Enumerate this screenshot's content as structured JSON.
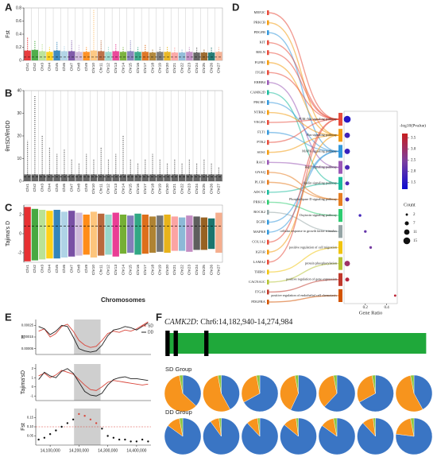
{
  "chart_data": [
    {
      "type": "manhattan",
      "label": "A",
      "ylabel": "Fst",
      "categories": [
        "Chr1",
        "Chr2",
        "Chr3",
        "Chr4",
        "Chr5",
        "Chr6",
        "Chr7",
        "Chr8",
        "Chr9",
        "Chr10",
        "Chr11",
        "Chr12",
        "Chr13",
        "Chr14",
        "Chr15",
        "Chr16",
        "Chr17",
        "Chr18",
        "Chr19",
        "Chr20",
        "Chr21",
        "Chr22",
        "Chr23",
        "Chr24",
        "Chr25",
        "Chr26",
        "Chr27"
      ],
      "values": [
        0.35,
        0.3,
        0.25,
        0.2,
        0.28,
        0.22,
        0.3,
        0.25,
        0.2,
        0.78,
        0.3,
        0.22,
        0.25,
        0.2,
        0.3,
        0.2,
        0.25,
        0.18,
        0.2,
        0.22,
        0.2,
        0.18,
        0.2,
        0.2,
        0.18,
        0.2,
        0.2
      ],
      "bulk": [
        0.15,
        0.16,
        0.14,
        0.13,
        0.15,
        0.14,
        0.14,
        0.13,
        0.13,
        0.15,
        0.14,
        0.13,
        0.14,
        0.13,
        0.14,
        0.13,
        0.13,
        0.12,
        0.13,
        0.13,
        0.12,
        0.12,
        0.13,
        0.12,
        0.12,
        0.12,
        0.13
      ],
      "colors": [
        "#e41a1c",
        "#33a02c",
        "#b2df8a",
        "#ffcc00",
        "#1f78b4",
        "#a6cee3",
        "#6a3d9a",
        "#cab2d6",
        "#ff7f00",
        "#fdbf6f",
        "#b15928",
        "#8dd3c7",
        "#e7298a",
        "#66a61e",
        "#7570b3",
        "#1b9e77",
        "#d95f02",
        "#a6761d",
        "#666666",
        "#e6ab02",
        "#fb9a99",
        "#80b1d3",
        "#bc80bd",
        "#4d4d4d",
        "#8c510a",
        "#01665e",
        "#f4a582"
      ],
      "ylim": [
        0,
        0.8
      ],
      "yticks": [
        0,
        0.2,
        0.4,
        0.6,
        0.8
      ],
      "threshold": 0.05,
      "separators": true
    },
    {
      "type": "manhattan",
      "label": "B",
      "ylabel": "θπSD/θπDD",
      "categories": [
        "Chr1",
        "Chr2",
        "Chr3",
        "Chr4",
        "Chr5",
        "Chr6",
        "Chr7",
        "Chr8",
        "Chr9",
        "Chr10",
        "Chr11",
        "Chr12",
        "Chr13",
        "Chr14",
        "Chr15",
        "Chr16",
        "Chr17",
        "Chr18",
        "Chr19",
        "Chr20",
        "Chr21",
        "Chr22",
        "Chr23",
        "Chr24",
        "Chr25",
        "Chr26",
        "Chr27"
      ],
      "values": [
        18,
        38,
        20,
        15,
        12,
        14,
        10,
        8,
        12,
        10,
        15,
        10,
        12,
        20,
        10,
        8,
        10,
        12,
        10,
        8,
        10,
        8,
        10,
        8,
        10,
        8,
        6
      ],
      "bulk": [
        3,
        3,
        3,
        3,
        3,
        3,
        3,
        3,
        3,
        3,
        3,
        3,
        3,
        3,
        3,
        3,
        3,
        3,
        3,
        3,
        3,
        3,
        3,
        3,
        3,
        3,
        3
      ],
      "color": "#4a4a4a",
      "ylim": [
        0,
        40
      ],
      "yticks": [
        0,
        10,
        20,
        30,
        40
      ],
      "threshold": 2,
      "separators": true
    },
    {
      "type": "manhattan",
      "label": "C",
      "ylabel": "Tajima's D",
      "xlabel": "Chromosomes",
      "categories": [
        "Chr1",
        "Chr2",
        "Chr3",
        "Chr4",
        "Chr5",
        "Chr6",
        "Chr7",
        "Chr8",
        "Chr9",
        "Chr10",
        "Chr11",
        "Chr12",
        "Chr13",
        "Chr14",
        "Chr15",
        "Chr16",
        "Chr17",
        "Chr18",
        "Chr19",
        "Chr20",
        "Chr21",
        "Chr22",
        "Chr23",
        "Chr24",
        "Chr25",
        "Chr26",
        "Chr27"
      ],
      "values": [
        2.8,
        2.6,
        2.5,
        2.4,
        2.5,
        2.3,
        2.4,
        2.2,
        2.0,
        2.3,
        2.1,
        2.0,
        2.2,
        2.0,
        1.9,
        2.1,
        2.0,
        1.8,
        1.9,
        2.0,
        1.8,
        1.7,
        1.9,
        1.8,
        1.7,
        1.6,
        2.2
      ],
      "lows": [
        -2.9,
        -2.8,
        -2.7,
        -2.6,
        -2.6,
        -2.5,
        -2.4,
        -2.3,
        -2.2,
        -2.5,
        -2.3,
        -2.2,
        -2.4,
        -2.1,
        -2.0,
        -2.2,
        -2.1,
        -2.0,
        -1.9,
        -2.0,
        -1.8,
        -1.8,
        -1.9,
        -1.7,
        -1.7,
        -1.6,
        -2.0
      ],
      "colors": [
        "#e41a1c",
        "#33a02c",
        "#b2df8a",
        "#ffcc00",
        "#1f78b4",
        "#a6cee3",
        "#6a3d9a",
        "#cab2d6",
        "#ff7f00",
        "#fdbf6f",
        "#b15928",
        "#8dd3c7",
        "#e7298a",
        "#66a61e",
        "#7570b3",
        "#1b9e77",
        "#d95f02",
        "#a6761d",
        "#666666",
        "#e6ab02",
        "#fb9a99",
        "#80b1d3",
        "#bc80bd",
        "#4d4d4d",
        "#8c510a",
        "#01665e",
        "#f4a582"
      ],
      "ylim": [
        -3,
        3
      ],
      "yticks": [
        -2,
        0,
        2
      ],
      "threshold": 0.8
    },
    {
      "type": "sankey-dot",
      "label": "D",
      "genes": [
        "MEF2C",
        "PRKCB",
        "PDGFB",
        "KIT",
        "RELN",
        "FGFR1",
        "ITGB1",
        "ERBB4",
        "CAMK2D",
        "PIK3R1",
        "NTRK2",
        "VEGFA",
        "FLT1",
        "PTK2",
        "SOS1",
        "RAC1",
        "GNAQ",
        "PLCB1",
        "ADCY2",
        "PRKCA",
        "ROCK2",
        "EGFR",
        "MAPK8",
        "COL1A2",
        "IGF1R",
        "LAMA2",
        "THBS1",
        "CACNA1C",
        "ITGA6",
        "PDGFRA"
      ],
      "gene_terms": [
        0,
        1,
        2,
        0,
        0,
        1,
        0,
        3,
        4,
        2,
        1,
        0,
        2,
        0,
        1,
        3,
        5,
        5,
        4,
        6,
        7,
        2,
        2,
        0,
        1,
        0,
        8,
        9,
        10,
        11
      ],
      "terms": [
        "PI3K-Akt signaling pathway",
        "Ras signaling pathway",
        "MAPK signaling pathway",
        "Rap1 signaling pathway",
        "Apelin signaling pathway",
        "Phospholipase D signaling pathway",
        "Oxytocin signaling pathway",
        "cellular response to growth factor stimulus",
        "positive regulation of cell migration",
        "protein phosphorylation",
        "positive regulation of gene expression",
        "positive regulation of endothelial cell chemotaxis"
      ],
      "term_colors": [
        "#e74c3c",
        "#f39c12",
        "#3498db",
        "#9b59b6",
        "#1abc9c",
        "#e67e22",
        "#2ecc71",
        "#95a5a6",
        "#f1c40f",
        "#b5c334",
        "#c0392b",
        "#d35400"
      ],
      "gene_ratio": [
        0.03,
        0.03,
        0.03,
        0.03,
        0.03,
        0.03,
        0.15,
        0.2,
        0.25,
        0.03,
        0.03,
        0.48
      ],
      "pvalue": [
        1.5,
        1.8,
        1.7,
        1.9,
        1.9,
        2.0,
        1.8,
        2.2,
        2.4,
        3.0,
        3.4,
        3.5
      ],
      "count": [
        15,
        11,
        11,
        9,
        7,
        7,
        3,
        3,
        3,
        11,
        7,
        2
      ],
      "xlabel": "Gene Ratio",
      "xlim": [
        0,
        0.5
      ],
      "xticks": [
        0.2,
        0.4
      ],
      "colorbar_title": "-log10(Pvalue)",
      "clim": [
        1.2,
        3.7
      ],
      "cticks": [
        1.5,
        {
          "value": 2,
          "label": "2.0"
        },
        2.5,
        {
          "value": 3,
          "label": "3.0"
        },
        3.5
      ],
      "cmap": [
        "#0b0bd1",
        "#7b3fa0",
        "#c81e1e"
      ],
      "count_title": "Count",
      "count_ticks": [
        2,
        7,
        11,
        15
      ]
    },
    {
      "type": "line",
      "label": "E",
      "ylabel": "π",
      "x": [
        14060000,
        14080000,
        14100000,
        14120000,
        14140000,
        14160000,
        14180000,
        14200000,
        14220000,
        14240000,
        14260000,
        14280000,
        14300000,
        14320000,
        14340000,
        14360000,
        14380000,
        14400000,
        14420000,
        14440000
      ],
      "series": [
        {
          "name": "SD",
          "color": "#d9453a",
          "values": [
            0.0002,
            0.00022,
            0.00015,
            0.00018,
            0.00024,
            0.00026,
            0.0002,
            0.00012,
            8e-05,
            6e-05,
            7e-05,
            0.00012,
            0.00018,
            0.0002,
            0.00019,
            0.00021,
            0.0002,
            0.00022,
            0.00025,
            0.00028
          ]
        },
        {
          "name": "DD",
          "color": "#222222",
          "values": [
            0.00024,
            0.00022,
            0.00017,
            0.0002,
            0.00025,
            0.00024,
            0.00015,
            5e-05,
            3e-05,
            2e-05,
            3e-05,
            8e-05,
            0.00016,
            0.00021,
            0.00022,
            0.00024,
            0.00023,
            0.00021,
            0.00024,
            0.00027
          ]
        }
      ],
      "xlim": [
        14050000,
        14450000
      ],
      "ylim": [
        0,
        0.0003
      ],
      "yticks": [
        5e-05,
        0.00015,
        0.00025
      ],
      "highlight": [
        14182940,
        14274984
      ],
      "legend": "upper right"
    },
    {
      "type": "line",
      "ylabel": "Tajima'sD",
      "x": [
        14060000,
        14080000,
        14100000,
        14120000,
        14140000,
        14160000,
        14180000,
        14200000,
        14220000,
        14240000,
        14260000,
        14280000,
        14300000,
        14320000,
        14340000,
        14360000,
        14380000,
        14400000,
        14420000,
        14440000
      ],
      "series": [
        {
          "color": "#d9453a",
          "values": [
            1.2,
            1.5,
            1.0,
            1.3,
            1.8,
            1.6,
            1.4,
            0.8,
            0.2,
            -0.3,
            -0.4,
            0.0,
            0.5,
            0.7,
            0.6,
            0.5,
            0.4,
            0.3,
            0.2,
            0.3
          ]
        },
        {
          "color": "#222222",
          "values": [
            0.8,
            1.6,
            1.2,
            1.0,
            1.7,
            2.0,
            1.5,
            0.5,
            -0.5,
            -0.9,
            -1.0,
            -0.7,
            0.2,
            0.8,
            1.0,
            1.1,
            0.9,
            0.9,
            0.8,
            0.7
          ]
        }
      ],
      "xlim": [
        14050000,
        14450000
      ],
      "ylim": [
        -1.5,
        2.5
      ],
      "yticks": [
        -1,
        0,
        1,
        2
      ],
      "highlight": [
        14182940,
        14274984
      ]
    },
    {
      "type": "scatter",
      "ylabel": "Fst",
      "x": [
        14060000,
        14080000,
        14100000,
        14120000,
        14140000,
        14160000,
        14180000,
        14200000,
        14220000,
        14240000,
        14260000,
        14280000,
        14300000,
        14320000,
        14340000,
        14360000,
        14380000,
        14400000,
        14420000,
        14440000
      ],
      "values": [
        0.03,
        0.04,
        0.06,
        0.08,
        0.1,
        0.12,
        0.14,
        0.17,
        0.16,
        0.14,
        0.12,
        0.09,
        0.05,
        0.04,
        0.03,
        0.03,
        0.02,
        0.02,
        0.03,
        0.02
      ],
      "color": "#111111",
      "highlight_color": "#d9453a",
      "threshold": 0.1,
      "xlim": [
        14050000,
        14450000
      ],
      "ylim": [
        0,
        0.2
      ],
      "yticks": [
        0.05,
        {
          "value": 0.1,
          "label": "0.10"
        },
        0.15
      ],
      "xticks": [
        {
          "value": 14100000,
          "label": "14,100,000"
        },
        {
          "value": 14200000,
          "label": "14,200,000"
        },
        {
          "value": 14300000,
          "label": "14,300,000"
        },
        {
          "value": 14400000,
          "label": "14,400,000"
        }
      ],
      "highlight": [
        14182940,
        14274984
      ]
    },
    {
      "type": "gene-pies",
      "label": "F",
      "gene": "CAMK2D",
      "region": ": Chr6:14,182,940-14,274,984",
      "gene_span": [
        14182940,
        14274984
      ],
      "xlim": [
        14182000,
        14276000
      ],
      "exons": [
        [
          14182900,
          14184400
        ],
        [
          14185800,
          14187300
        ],
        [
          14196600,
          14198100
        ]
      ],
      "gene_color": "#1fa83a",
      "exon_color": "#000000",
      "colors": [
        "#3a75c4",
        "#f7941d",
        "#8dc63f"
      ],
      "groups": [
        {
          "name": "SD Group",
          "pies": [
            [
              37,
              60,
              3
            ],
            [
              42,
              55,
              3
            ],
            [
              67,
              30,
              3
            ],
            [
              57,
              40,
              3
            ],
            [
              62,
              35,
              3
            ],
            [
              67,
              30,
              3
            ],
            [
              42,
              55,
              3
            ]
          ]
        },
        {
          "name": "DD Group",
          "pies": [
            [
              85,
              12,
              3
            ],
            [
              90,
              8,
              2
            ],
            [
              88,
              10,
              2
            ],
            [
              86,
              12,
              2
            ],
            [
              85,
              12,
              3
            ],
            [
              88,
              10,
              2
            ],
            [
              77,
              20,
              3
            ]
          ]
        }
      ]
    }
  ]
}
